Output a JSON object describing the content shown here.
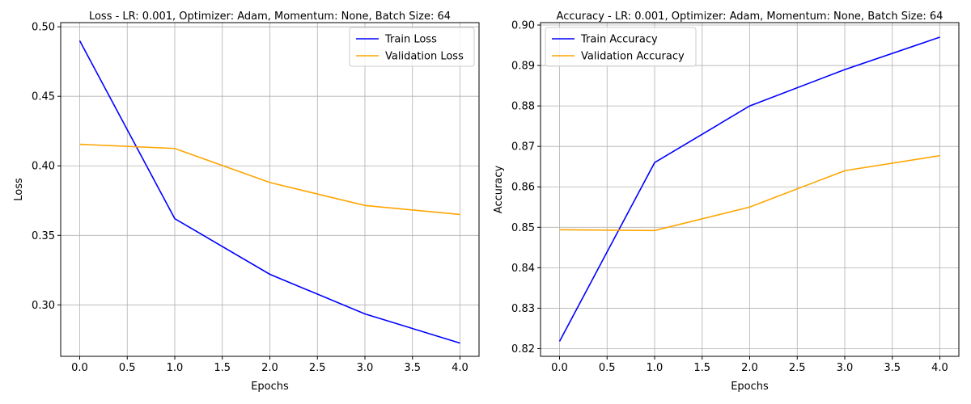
{
  "chart_data": [
    {
      "type": "line",
      "title": "Loss - LR: 0.001, Optimizer: Adam, Momentum: None, Batch Size: 64",
      "xlabel": "Epochs",
      "ylabel": "Loss",
      "x": [
        0,
        1,
        2,
        3,
        4
      ],
      "xlim": [
        -0.2,
        4.2
      ],
      "ylim": [
        0.263,
        0.503
      ],
      "xticks": [
        0.0,
        0.5,
        1.0,
        1.5,
        2.0,
        2.5,
        3.0,
        3.5,
        4.0
      ],
      "xtick_labels": [
        "0.0",
        "0.5",
        "1.0",
        "1.5",
        "2.0",
        "2.5",
        "3.0",
        "3.5",
        "4.0"
      ],
      "yticks": [
        0.3,
        0.35,
        0.4,
        0.45,
        0.5
      ],
      "ytick_labels": [
        "0.30",
        "0.35",
        "0.40",
        "0.45",
        "0.50"
      ],
      "grid": true,
      "legend_position": "top-right",
      "series": [
        {
          "name": "Train Loss",
          "color": "#0000ff",
          "values": [
            0.49,
            0.362,
            0.322,
            0.2935,
            0.2725
          ]
        },
        {
          "name": "Validation Loss",
          "color": "#ffa500",
          "values": [
            0.4155,
            0.4125,
            0.388,
            0.3715,
            0.365
          ]
        }
      ]
    },
    {
      "type": "line",
      "title": "Accuracy - LR: 0.001, Optimizer: Adam, Momentum: None, Batch Size: 64",
      "xlabel": "Epochs",
      "ylabel": "Accuracy",
      "x": [
        0,
        1,
        2,
        3,
        4
      ],
      "xlim": [
        -0.2,
        4.2
      ],
      "ylim": [
        0.8181,
        0.9006
      ],
      "xticks": [
        0.0,
        0.5,
        1.0,
        1.5,
        2.0,
        2.5,
        3.0,
        3.5,
        4.0
      ],
      "xtick_labels": [
        "0.0",
        "0.5",
        "1.0",
        "1.5",
        "2.0",
        "2.5",
        "3.0",
        "3.5",
        "4.0"
      ],
      "yticks": [
        0.82,
        0.83,
        0.84,
        0.85,
        0.86,
        0.87,
        0.88,
        0.89,
        0.9
      ],
      "ytick_labels": [
        "0.82",
        "0.83",
        "0.84",
        "0.85",
        "0.86",
        "0.87",
        "0.88",
        "0.89",
        "0.90"
      ],
      "grid": true,
      "legend_position": "top-left",
      "series": [
        {
          "name": "Train Accuracy",
          "color": "#0000ff",
          "values": [
            0.8218,
            0.866,
            0.88,
            0.889,
            0.897
          ]
        },
        {
          "name": "Validation Accuracy",
          "color": "#ffa500",
          "values": [
            0.8494,
            0.8492,
            0.855,
            0.864,
            0.8677
          ]
        }
      ]
    }
  ]
}
